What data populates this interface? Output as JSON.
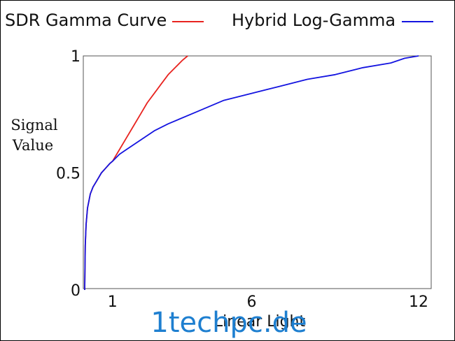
{
  "chart_data": {
    "type": "line",
    "title": "",
    "xlabel": "Linear Light",
    "ylabel": [
      "Signal",
      "Value"
    ],
    "xlim": [
      0,
      12
    ],
    "ylim": [
      0,
      1
    ],
    "x_ticks": [
      {
        "value": 1,
        "label": "1"
      },
      {
        "value": 6,
        "label": "6"
      },
      {
        "value": 12,
        "label": "12"
      }
    ],
    "y_ticks": [
      {
        "value": 0,
        "label": "0"
      },
      {
        "value": 0.5,
        "label": "0.5"
      },
      {
        "value": 1,
        "label": "1"
      }
    ],
    "grid": false,
    "legend_position": "top",
    "series": [
      {
        "name": "SDR Gamma Curve",
        "color": "#e8231f",
        "x": [
          0,
          0.02,
          0.05,
          0.1,
          0.2,
          0.3,
          0.4,
          0.5,
          0.6,
          0.75,
          0.9,
          1.0,
          1.25,
          1.5,
          1.75,
          2.0,
          2.25,
          2.5,
          2.75,
          3.0,
          3.25,
          3.5,
          3.7
        ],
        "y": [
          0,
          0.19,
          0.28,
          0.35,
          0.41,
          0.44,
          0.46,
          0.48,
          0.5,
          0.52,
          0.54,
          0.55,
          0.6,
          0.65,
          0.7,
          0.75,
          0.8,
          0.84,
          0.88,
          0.92,
          0.95,
          0.98,
          1.0
        ]
      },
      {
        "name": "Hybrid Log-Gamma",
        "color": "#1414e0",
        "x": [
          0,
          0.02,
          0.05,
          0.1,
          0.2,
          0.3,
          0.4,
          0.5,
          0.6,
          0.75,
          0.9,
          1.0,
          1.25,
          1.5,
          2.0,
          2.5,
          3.0,
          4.0,
          5.0,
          6.0,
          7.0,
          8.0,
          9.0,
          10.0,
          11.0,
          11.5,
          12.0
        ],
        "y": [
          0,
          0.19,
          0.28,
          0.35,
          0.41,
          0.44,
          0.46,
          0.48,
          0.5,
          0.52,
          0.54,
          0.55,
          0.58,
          0.6,
          0.64,
          0.68,
          0.71,
          0.76,
          0.81,
          0.84,
          0.87,
          0.9,
          0.92,
          0.95,
          0.97,
          0.99,
          1.0
        ]
      }
    ],
    "annotations": [
      "1techpc.de"
    ]
  },
  "colors": {
    "axes": "#555555",
    "text": "#111111",
    "watermark": "#1e7fd0"
  }
}
